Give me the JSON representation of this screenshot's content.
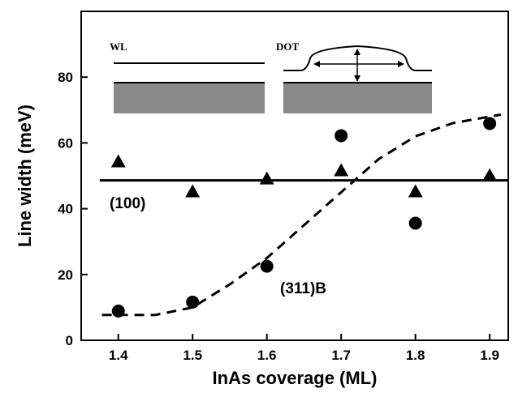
{
  "chart_data": {
    "type": "scatter",
    "x_label": "InAs coverage (ML)",
    "y_label": "Line width (meV)",
    "x": [
      1.4,
      1.5,
      1.6,
      1.7,
      1.8,
      1.9
    ],
    "series": [
      {
        "marker": "triangle",
        "color": "#000000",
        "values": [
          54.3,
          45.2,
          49.1,
          51.6,
          45.2,
          50.1
        ]
      },
      {
        "marker": "circle",
        "color": "#000000",
        "values": [
          8.9,
          11.6,
          22.5,
          62.2,
          35.6,
          65.9
        ]
      }
    ],
    "lines": [
      {
        "style": "solid",
        "x": [
          1.375,
          1.925
        ],
        "values": [
          48.6,
          48.6
        ]
      },
      {
        "style": "dashed",
        "x": [
          1.378,
          1.45,
          1.5,
          1.55,
          1.6,
          1.65,
          1.7,
          1.75,
          1.8,
          1.85,
          1.915
        ],
        "values": [
          7.7,
          7.7,
          10,
          17,
          25,
          35,
          45,
          55,
          62,
          66,
          68.6
        ]
      }
    ],
    "annotations": [
      "(100)",
      "(311)B",
      "WL",
      "DOT"
    ],
    "xlim": [
      1.35,
      1.925
    ],
    "ylim": [
      0,
      100
    ],
    "xticks": [
      1.4,
      1.5,
      1.6,
      1.7,
      1.8,
      1.9
    ],
    "yticks": [
      0,
      20,
      40,
      60,
      80
    ]
  }
}
